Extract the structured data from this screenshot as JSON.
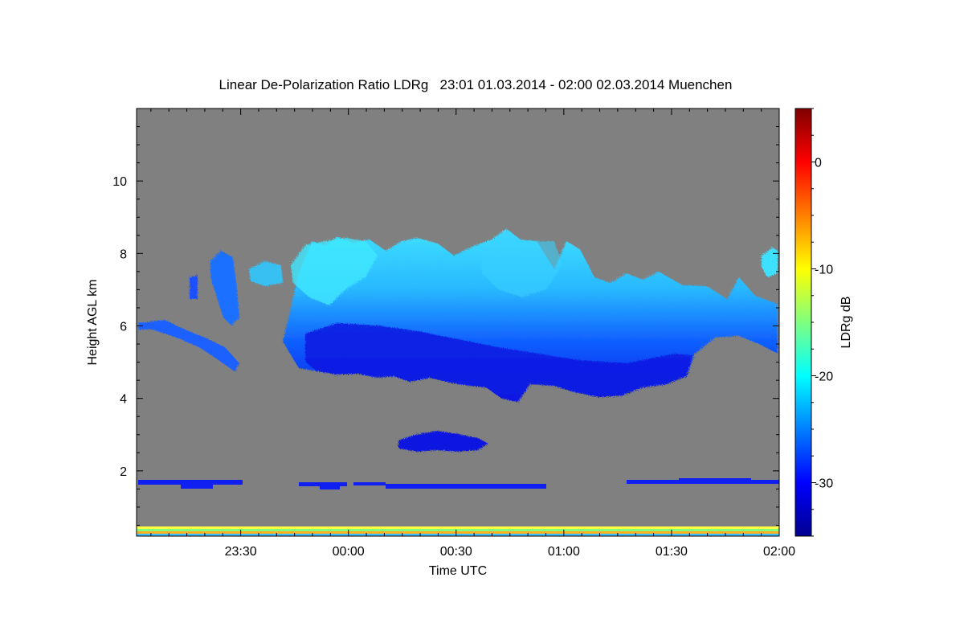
{
  "chart_data": {
    "type": "heatmap",
    "title": "Linear De-Polarization Ratio LDRg   23:01 01.03.2014 - 02:00 02.03.2014 Muenchen",
    "xlabel": "Time UTC",
    "ylabel": "Height AGL km",
    "colorbar_label": "LDRg dB",
    "x_ticks": [
      "23:30",
      "00:00",
      "00:30",
      "01:00",
      "01:30",
      "02:00"
    ],
    "y_ticks": [
      "2",
      "4",
      "6",
      "8",
      "10"
    ],
    "colorbar_ticks": [
      "0",
      "-10",
      "-20",
      "-30"
    ],
    "xlim_minutes_after_2300": [
      1,
      180
    ],
    "ylim_km": [
      0.2,
      12
    ],
    "colorbar_range_db": [
      -35,
      5
    ],
    "background_color": "#808080",
    "features": [
      {
        "name": "main ice cloud",
        "time_start": "23:41",
        "time_end": "02:00",
        "height_bottom_km": 4.0,
        "height_top_km": 8.6,
        "ldr_top_db": -21,
        "ldr_base_db": -31
      },
      {
        "name": "early thin layer",
        "time_start": "23:01",
        "time_end": "23:27",
        "height_bottom_km": 4.9,
        "height_top_km": 7.6,
        "ldr_db": -26
      },
      {
        "name": "mid-level layer",
        "time_start": "00:15",
        "time_end": "00:39",
        "height_bottom_km": 2.5,
        "height_top_km": 3.0,
        "ldr_db": -33
      },
      {
        "name": "boundary layer aerosol",
        "time_start": "23:01",
        "time_end": "02:00",
        "height_bottom_km": 1.4,
        "height_top_km": 1.8,
        "ldr_db": -33
      },
      {
        "name": "near-ground clutter",
        "time_start": "23:01",
        "time_end": "02:00",
        "height_bottom_km": 0.2,
        "height_top_km": 0.5,
        "ldr_db": -10
      }
    ]
  }
}
